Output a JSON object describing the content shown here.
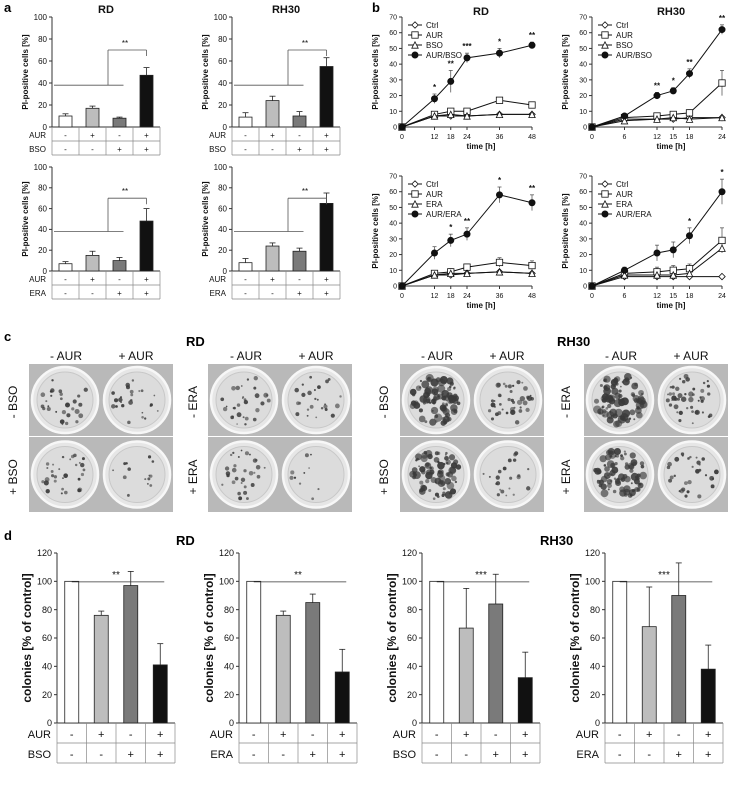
{
  "figure": {
    "panel_letters": {
      "a": "a",
      "b": "b",
      "c": "c",
      "d": "d"
    },
    "cell_lines": {
      "rd": "RD",
      "rh30": "RH30"
    },
    "colony_headers": {
      "minus_aur": "- AUR",
      "plus_aur": "+ AUR",
      "minus_bso": "- BSO",
      "plus_bso": "+ BSO",
      "minus_era": "- ERA",
      "plus_era": "+ ERA"
    },
    "colors": {
      "ctrl": "#ffffff",
      "aur": "#bdbdbd",
      "drug": "#7a7a7a",
      "combo": "#111111",
      "plate": "#b9b9b9"
    }
  },
  "chart_data": [
    {
      "id": "a1",
      "type": "bar",
      "title": "RD",
      "ylabel": "PI-positive cells [%]",
      "ylim": [
        0,
        100
      ],
      "yticks": [
        0,
        20,
        40,
        60,
        80,
        100
      ],
      "treatments": [
        {
          "name": "AUR",
          "labels": [
            "-",
            "+",
            "-",
            "+"
          ]
        },
        {
          "name": "BSO",
          "labels": [
            "-",
            "-",
            "+",
            "+"
          ]
        }
      ],
      "values": [
        10,
        17,
        8,
        47
      ],
      "errors": [
        2,
        2,
        1,
        7
      ],
      "significance": "**"
    },
    {
      "id": "a2",
      "type": "bar",
      "title": "RH30",
      "ylabel": "PI-positive cells [%]",
      "ylim": [
        0,
        100
      ],
      "yticks": [
        0,
        20,
        40,
        60,
        80,
        100
      ],
      "treatments": [
        {
          "name": "AUR",
          "labels": [
            "-",
            "+",
            "-",
            "+"
          ]
        },
        {
          "name": "BSO",
          "labels": [
            "-",
            "-",
            "+",
            "+"
          ]
        }
      ],
      "values": [
        9,
        24,
        10,
        55
      ],
      "errors": [
        4,
        4,
        4,
        8
      ],
      "significance": "**"
    },
    {
      "id": "a3",
      "type": "bar",
      "title": "",
      "ylabel": "PI-positive cells [%]",
      "ylim": [
        0,
        100
      ],
      "yticks": [
        0,
        20,
        40,
        60,
        80,
        100
      ],
      "treatments": [
        {
          "name": "AUR",
          "labels": [
            "-",
            "+",
            "-",
            "+"
          ]
        },
        {
          "name": "ERA",
          "labels": [
            "-",
            "-",
            "+",
            "+"
          ]
        }
      ],
      "values": [
        7,
        15,
        10,
        48
      ],
      "errors": [
        2,
        4,
        3,
        12
      ],
      "significance": "**"
    },
    {
      "id": "a4",
      "type": "bar",
      "title": "",
      "ylabel": "PI-positive cells [%]",
      "ylim": [
        0,
        100
      ],
      "yticks": [
        0,
        20,
        40,
        60,
        80,
        100
      ],
      "treatments": [
        {
          "name": "AUR",
          "labels": [
            "-",
            "+",
            "-",
            "+"
          ]
        },
        {
          "name": "ERA",
          "labels": [
            "-",
            "-",
            "+",
            "+"
          ]
        }
      ],
      "values": [
        8,
        24,
        19,
        65
      ],
      "errors": [
        4,
        3,
        3,
        10
      ],
      "significance": "**"
    },
    {
      "id": "b1",
      "type": "line",
      "title": "RD",
      "xlabel": "time [h]",
      "ylabel": "PI-positive cells [%]",
      "ylim": [
        0,
        70
      ],
      "yticks": [
        0,
        10,
        20,
        30,
        40,
        50,
        60,
        70
      ],
      "x": [
        0,
        12,
        18,
        24,
        36,
        48
      ],
      "series": [
        {
          "name": "Ctrl",
          "marker": "diamond",
          "values": [
            0,
            7,
            7,
            7,
            8,
            8
          ]
        },
        {
          "name": "AUR",
          "marker": "square",
          "values": [
            0,
            8,
            10,
            10,
            17,
            14
          ]
        },
        {
          "name": "BSO",
          "marker": "triangle",
          "values": [
            0,
            7,
            8,
            7,
            8,
            8
          ]
        },
        {
          "name": "AUR/BSO",
          "marker": "circle",
          "values": [
            0,
            18,
            29,
            44,
            47,
            52
          ],
          "errors": [
            0,
            3,
            7,
            3,
            3,
            2
          ]
        }
      ],
      "stars": [
        "",
        "*",
        "**",
        "***",
        "*",
        "**"
      ]
    },
    {
      "id": "b2",
      "type": "line",
      "title": "RH30",
      "xlabel": "time [h]",
      "ylabel": "PI-positive cells [%]",
      "ylim": [
        0,
        70
      ],
      "yticks": [
        0,
        10,
        20,
        30,
        40,
        50,
        60,
        70
      ],
      "x": [
        0,
        6,
        12,
        15,
        18,
        24
      ],
      "series": [
        {
          "name": "Ctrl",
          "marker": "diamond",
          "values": [
            0,
            5,
            5,
            5,
            6,
            6
          ]
        },
        {
          "name": "AUR",
          "marker": "square",
          "values": [
            0,
            6,
            7,
            8,
            9,
            28
          ],
          "errors": [
            0,
            1,
            1,
            1,
            2,
            8
          ]
        },
        {
          "name": "BSO",
          "marker": "triangle",
          "values": [
            0,
            4,
            5,
            6,
            5,
            6
          ]
        },
        {
          "name": "AUR/BSO",
          "marker": "circle",
          "values": [
            0,
            7,
            20,
            23,
            34,
            62
          ],
          "errors": [
            0,
            1,
            2,
            2,
            3,
            3
          ]
        }
      ],
      "stars": [
        "",
        "",
        "**",
        "*",
        "**",
        "**"
      ]
    },
    {
      "id": "b3",
      "type": "line",
      "title": "",
      "xlabel": "time [h]",
      "ylabel": "PI-positive cells [%]",
      "ylim": [
        0,
        70
      ],
      "yticks": [
        0,
        10,
        20,
        30,
        40,
        50,
        60,
        70
      ],
      "x": [
        0,
        12,
        18,
        24,
        36,
        48
      ],
      "series": [
        {
          "name": "Ctrl",
          "marker": "diamond",
          "values": [
            0,
            7,
            7,
            8,
            9,
            8
          ]
        },
        {
          "name": "AUR",
          "marker": "square",
          "values": [
            0,
            8,
            9,
            12,
            15,
            13
          ],
          "errors": [
            0,
            1,
            2,
            2,
            3,
            3
          ]
        },
        {
          "name": "ERA",
          "marker": "triangle",
          "values": [
            0,
            7,
            8,
            8,
            9,
            8
          ]
        },
        {
          "name": "AUR/ERA",
          "marker": "circle",
          "values": [
            0,
            21,
            29,
            33,
            58,
            53
          ],
          "errors": [
            0,
            4,
            4,
            4,
            5,
            5
          ]
        }
      ],
      "stars": [
        "",
        "",
        "*",
        "**",
        "*",
        "**"
      ]
    },
    {
      "id": "b4",
      "type": "line",
      "title": "",
      "xlabel": "time [h]",
      "ylabel": "PI-positive cells [%]",
      "ylim": [
        0,
        70
      ],
      "yticks": [
        0,
        10,
        20,
        30,
        40,
        50,
        60,
        70
      ],
      "x": [
        0,
        6,
        12,
        15,
        18,
        24
      ],
      "series": [
        {
          "name": "Ctrl",
          "marker": "diamond",
          "values": [
            0,
            6,
            6,
            6,
            6,
            6
          ]
        },
        {
          "name": "AUR",
          "marker": "square",
          "values": [
            0,
            8,
            9,
            10,
            11,
            29
          ],
          "errors": [
            0,
            2,
            3,
            3,
            3,
            8
          ]
        },
        {
          "name": "ERA",
          "marker": "triangle",
          "values": [
            0,
            7,
            7,
            7,
            8,
            24
          ]
        },
        {
          "name": "AUR/ERA",
          "marker": "circle",
          "values": [
            0,
            10,
            21,
            23,
            32,
            60
          ],
          "errors": [
            0,
            2,
            5,
            5,
            5,
            8
          ]
        }
      ],
      "stars": [
        "",
        "",
        "",
        "",
        "*",
        "*"
      ]
    },
    {
      "id": "d1",
      "type": "bar",
      "title": "",
      "ylabel": "colonies [% of control]",
      "ylim": [
        0,
        120
      ],
      "yticks": [
        0,
        20,
        40,
        60,
        80,
        100,
        120
      ],
      "treatments": [
        {
          "name": "AUR",
          "labels": [
            "-",
            "+",
            "-",
            "+"
          ]
        },
        {
          "name": "BSO",
          "labels": [
            "-",
            "-",
            "+",
            "+"
          ]
        }
      ],
      "values": [
        100,
        76,
        97,
        41
      ],
      "errors": [
        0,
        3,
        10,
        15
      ],
      "significance": "**"
    },
    {
      "id": "d2",
      "type": "bar",
      "title": "",
      "ylabel": "colonies [% of control]",
      "ylim": [
        0,
        120
      ],
      "yticks": [
        0,
        20,
        40,
        60,
        80,
        100,
        120
      ],
      "treatments": [
        {
          "name": "AUR",
          "labels": [
            "-",
            "+",
            "-",
            "+"
          ]
        },
        {
          "name": "ERA",
          "labels": [
            "-",
            "-",
            "+",
            "+"
          ]
        }
      ],
      "values": [
        100,
        76,
        85,
        36
      ],
      "errors": [
        0,
        3,
        6,
        16
      ],
      "significance": "**"
    },
    {
      "id": "d3",
      "type": "bar",
      "title": "",
      "ylabel": "colonies [% of control]",
      "ylim": [
        0,
        120
      ],
      "yticks": [
        0,
        20,
        40,
        60,
        80,
        100,
        120
      ],
      "treatments": [
        {
          "name": "AUR",
          "labels": [
            "-",
            "+",
            "-",
            "+"
          ]
        },
        {
          "name": "BSO",
          "labels": [
            "-",
            "-",
            "+",
            "+"
          ]
        }
      ],
      "values": [
        100,
        67,
        84,
        32
      ],
      "errors": [
        0,
        28,
        21,
        18
      ],
      "significance": "***"
    },
    {
      "id": "d4",
      "type": "bar",
      "title": "",
      "ylabel": "colonies [% of control]",
      "ylim": [
        0,
        120
      ],
      "yticks": [
        0,
        20,
        40,
        60,
        80,
        100,
        120
      ],
      "treatments": [
        {
          "name": "AUR",
          "labels": [
            "-",
            "+",
            "-",
            "+"
          ]
        },
        {
          "name": "ERA",
          "labels": [
            "-",
            "-",
            "+",
            "+"
          ]
        }
      ],
      "values": [
        100,
        68,
        90,
        38
      ],
      "errors": [
        0,
        28,
        23,
        17
      ],
      "significance": "***"
    }
  ]
}
